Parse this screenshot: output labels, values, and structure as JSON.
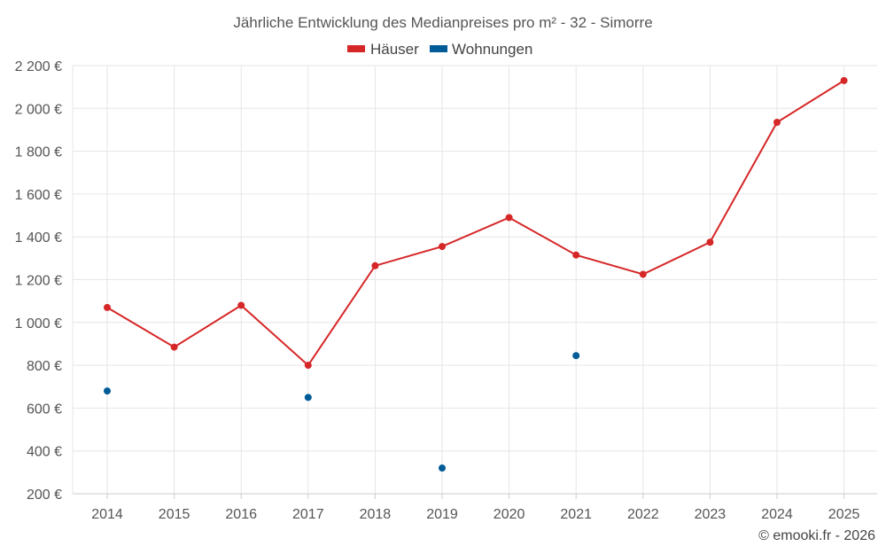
{
  "chart_data": {
    "type": "line",
    "title": "Jährliche Entwicklung des Medianpreises pro m² - 32 - Simorre",
    "categories": [
      "2014",
      "2015",
      "2016",
      "2017",
      "2018",
      "2019",
      "2020",
      "2021",
      "2022",
      "2023",
      "2024",
      "2025"
    ],
    "ylim": [
      200,
      2200
    ],
    "ytick_values": [
      200,
      400,
      600,
      800,
      1000,
      1200,
      1400,
      1600,
      1800,
      2000,
      2200
    ],
    "ytick_labels": [
      "200 €",
      "400 €",
      "600 €",
      "800 €",
      "1 000 €",
      "1 200 €",
      "1 400 €",
      "1 600 €",
      "1 800 €",
      "2 000 €",
      "2 200 €"
    ],
    "grid": true,
    "legend_position": "top-center",
    "series": [
      {
        "name": "Häuser",
        "color": "#d62728",
        "style": "line",
        "values": [
          1070,
          885,
          1080,
          800,
          1265,
          1355,
          1490,
          1315,
          1225,
          1375,
          1935,
          2130
        ]
      },
      {
        "name": "Wohnungen",
        "color": "#005b96",
        "style": "points",
        "values": [
          680,
          null,
          null,
          650,
          null,
          320,
          null,
          845,
          null,
          null,
          null,
          null
        ]
      }
    ]
  },
  "credit": "© emooki.fr - 2026"
}
